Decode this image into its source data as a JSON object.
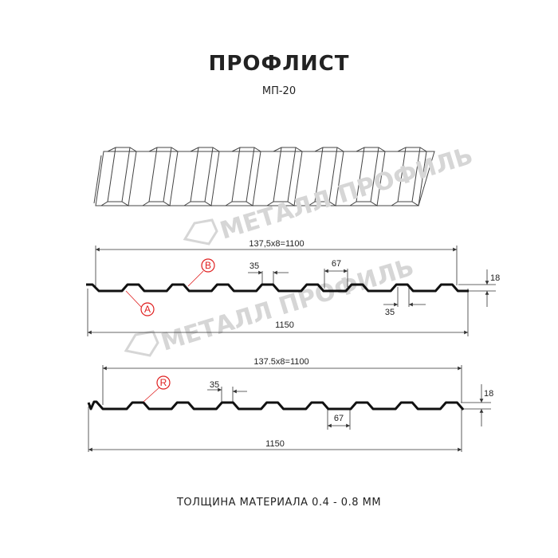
{
  "header": {
    "title": "ПРОФЛИСТ",
    "subtitle": "МП-20"
  },
  "watermark": {
    "text": "МЕТАЛЛ ПРОФИЛЬ",
    "color": "#d6d6d6"
  },
  "profile_a": {
    "span_label": "137,5x8=1100",
    "total_label": "1150",
    "rib_top_label": "35",
    "rib_top_label_2": "35",
    "rib_gap_label": "67",
    "height_label": "18",
    "markers": [
      "A",
      "B"
    ]
  },
  "profile_r": {
    "span_label": "137.5x8=1100",
    "total_label": "1150",
    "rib_top_label": "35",
    "rib_gap_label": "67",
    "height_label": "18",
    "markers": [
      "R"
    ]
  },
  "footer": {
    "thickness": "ТОЛЩИНА МАТЕРИАЛА 0.4 - 0.8 ММ"
  },
  "colors": {
    "marker": "#e02020",
    "line": "#111111"
  }
}
